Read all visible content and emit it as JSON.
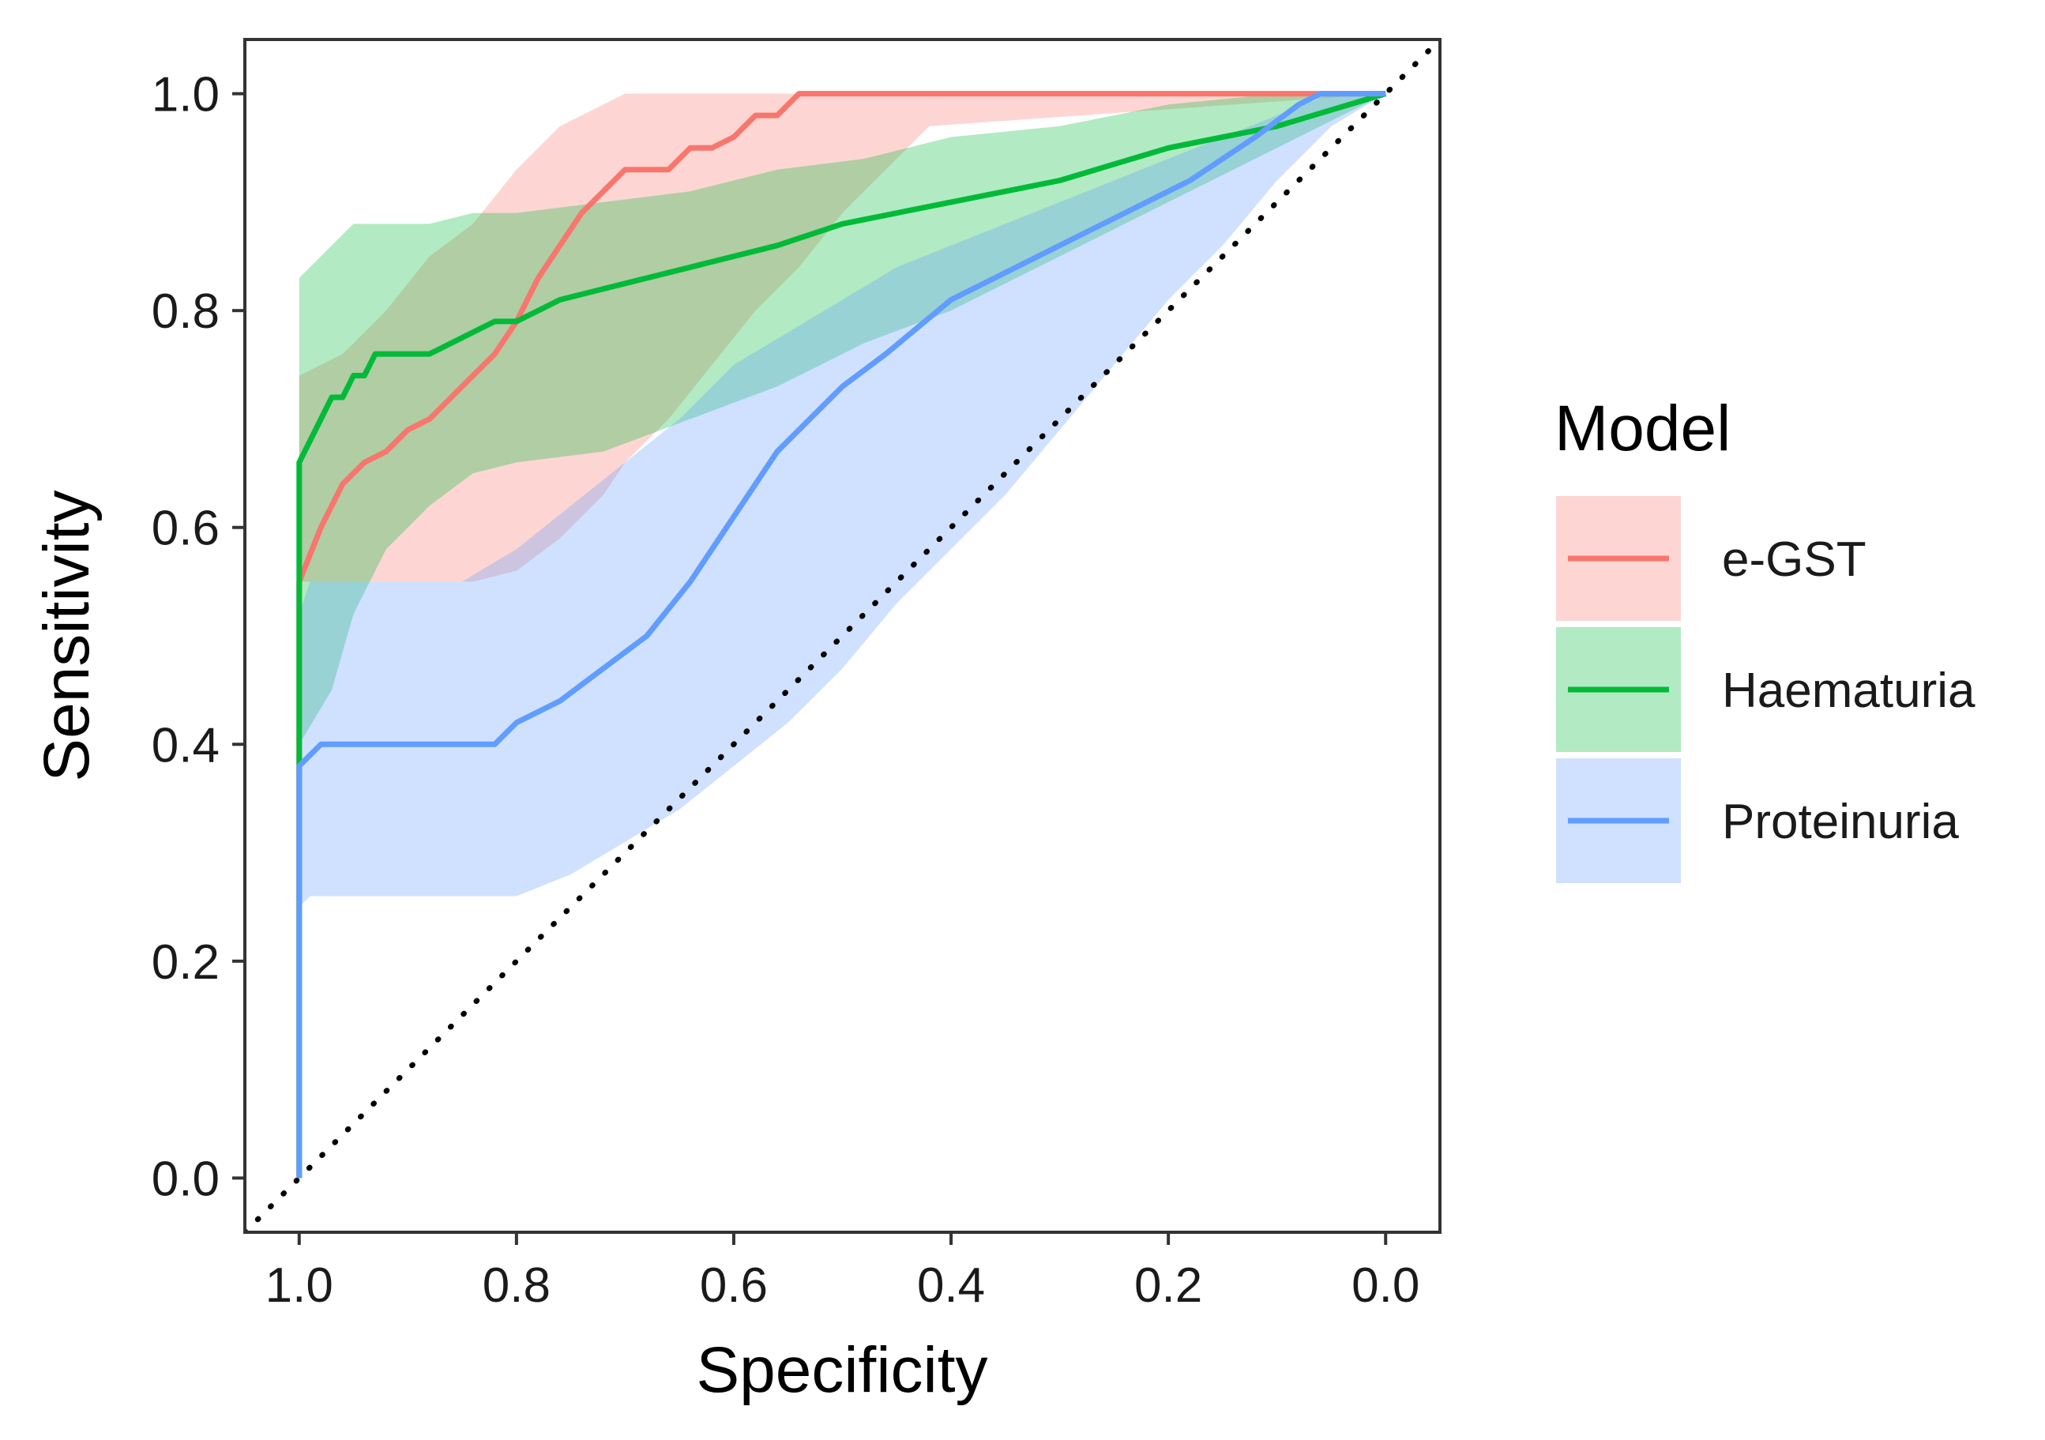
{
  "chart_data": {
    "type": "line",
    "xlabel": "Specificity",
    "ylabel": "Sensitivity",
    "xlim": [
      1.05,
      -0.05
    ],
    "ylim": [
      -0.05,
      1.05
    ],
    "x_reversed": true,
    "xticks": [
      1.0,
      0.8,
      0.6,
      0.4,
      0.2,
      0.0
    ],
    "xtick_labels": [
      "1.0",
      "0.8",
      "0.6",
      "0.4",
      "0.2",
      "0.0"
    ],
    "yticks": [
      0.0,
      0.2,
      0.4,
      0.6,
      0.8,
      1.0
    ],
    "ytick_labels": [
      "0.0",
      "0.2",
      "0.4",
      "0.6",
      "0.8",
      "1.0"
    ],
    "legend_title": "Model",
    "legend_position": "right",
    "reference_line": {
      "style": "dotted",
      "from": [
        1.05,
        -0.05
      ],
      "to": [
        -0.05,
        1.05
      ]
    },
    "series": [
      {
        "name": "e-GST",
        "color": "#F8766D",
        "x": [
          1.0,
          1.0,
          0.98,
          0.96,
          0.94,
          0.92,
          0.9,
          0.88,
          0.86,
          0.84,
          0.82,
          0.8,
          0.78,
          0.76,
          0.74,
          0.72,
          0.7,
          0.66,
          0.64,
          0.62,
          0.6,
          0.58,
          0.56,
          0.55,
          0.54,
          0.4,
          0.0
        ],
        "y": [
          0.0,
          0.55,
          0.6,
          0.64,
          0.66,
          0.67,
          0.69,
          0.7,
          0.72,
          0.74,
          0.76,
          0.79,
          0.83,
          0.86,
          0.89,
          0.91,
          0.93,
          0.93,
          0.95,
          0.95,
          0.96,
          0.98,
          0.98,
          0.99,
          1.0,
          1.0,
          1.0
        ],
        "ci_x": [
          1.0,
          0.96,
          0.92,
          0.88,
          0.84,
          0.8,
          0.76,
          0.72,
          0.7,
          0.66,
          0.62,
          0.58,
          0.54,
          0.5,
          0.46,
          0.42,
          0.0
        ],
        "ci_upper": [
          0.74,
          0.76,
          0.8,
          0.85,
          0.88,
          0.93,
          0.97,
          0.99,
          1.0,
          1.0,
          1.0,
          1.0,
          1.0,
          1.0,
          1.0,
          1.0,
          1.0
        ],
        "ci_lower": [
          0.55,
          0.55,
          0.55,
          0.55,
          0.55,
          0.56,
          0.59,
          0.63,
          0.66,
          0.7,
          0.75,
          0.8,
          0.84,
          0.89,
          0.93,
          0.97,
          1.0
        ]
      },
      {
        "name": "Haematuria",
        "color": "#00BA38",
        "x": [
          1.0,
          1.0,
          0.98,
          0.97,
          0.96,
          0.95,
          0.94,
          0.93,
          0.9,
          0.88,
          0.86,
          0.84,
          0.82,
          0.8,
          0.78,
          0.76,
          0.72,
          0.68,
          0.64,
          0.6,
          0.56,
          0.5,
          0.4,
          0.3,
          0.2,
          0.1,
          0.0
        ],
        "y": [
          0.0,
          0.66,
          0.7,
          0.72,
          0.72,
          0.74,
          0.74,
          0.76,
          0.76,
          0.76,
          0.77,
          0.78,
          0.79,
          0.79,
          0.8,
          0.81,
          0.82,
          0.83,
          0.84,
          0.85,
          0.86,
          0.88,
          0.9,
          0.92,
          0.95,
          0.97,
          1.0
        ],
        "ci_x": [
          1.0,
          0.97,
          0.95,
          0.92,
          0.88,
          0.84,
          0.8,
          0.72,
          0.64,
          0.56,
          0.48,
          0.4,
          0.3,
          0.2,
          0.1,
          0.0
        ],
        "ci_upper": [
          0.83,
          0.86,
          0.88,
          0.88,
          0.88,
          0.89,
          0.89,
          0.9,
          0.91,
          0.93,
          0.94,
          0.96,
          0.97,
          0.99,
          1.0,
          1.0
        ],
        "ci_lower": [
          0.4,
          0.45,
          0.52,
          0.58,
          0.62,
          0.65,
          0.66,
          0.67,
          0.7,
          0.73,
          0.77,
          0.8,
          0.85,
          0.9,
          0.95,
          1.0
        ]
      },
      {
        "name": "Proteinuria",
        "color": "#619CFF",
        "x": [
          1.0,
          1.0,
          0.99,
          0.98,
          0.95,
          0.9,
          0.85,
          0.82,
          0.8,
          0.78,
          0.76,
          0.72,
          0.68,
          0.64,
          0.6,
          0.56,
          0.5,
          0.46,
          0.4,
          0.36,
          0.3,
          0.24,
          0.18,
          0.12,
          0.08,
          0.06,
          0.0
        ],
        "y": [
          0.0,
          0.38,
          0.39,
          0.4,
          0.4,
          0.4,
          0.4,
          0.4,
          0.42,
          0.43,
          0.44,
          0.47,
          0.5,
          0.55,
          0.61,
          0.67,
          0.73,
          0.76,
          0.81,
          0.83,
          0.86,
          0.89,
          0.92,
          0.96,
          0.99,
          1.0,
          1.0
        ],
        "ci_x": [
          1.0,
          0.99,
          0.95,
          0.9,
          0.85,
          0.8,
          0.75,
          0.7,
          0.65,
          0.6,
          0.55,
          0.5,
          0.45,
          0.4,
          0.35,
          0.3,
          0.25,
          0.2,
          0.15,
          0.1,
          0.05,
          0.0
        ],
        "ci_upper": [
          0.52,
          0.55,
          0.55,
          0.55,
          0.55,
          0.58,
          0.62,
          0.66,
          0.7,
          0.75,
          0.78,
          0.81,
          0.84,
          0.86,
          0.88,
          0.9,
          0.92,
          0.94,
          0.96,
          0.98,
          1.0,
          1.0
        ],
        "ci_lower": [
          0.25,
          0.26,
          0.26,
          0.26,
          0.26,
          0.26,
          0.28,
          0.31,
          0.34,
          0.38,
          0.42,
          0.47,
          0.53,
          0.58,
          0.63,
          0.69,
          0.75,
          0.81,
          0.86,
          0.92,
          0.97,
          1.0
        ]
      }
    ]
  }
}
